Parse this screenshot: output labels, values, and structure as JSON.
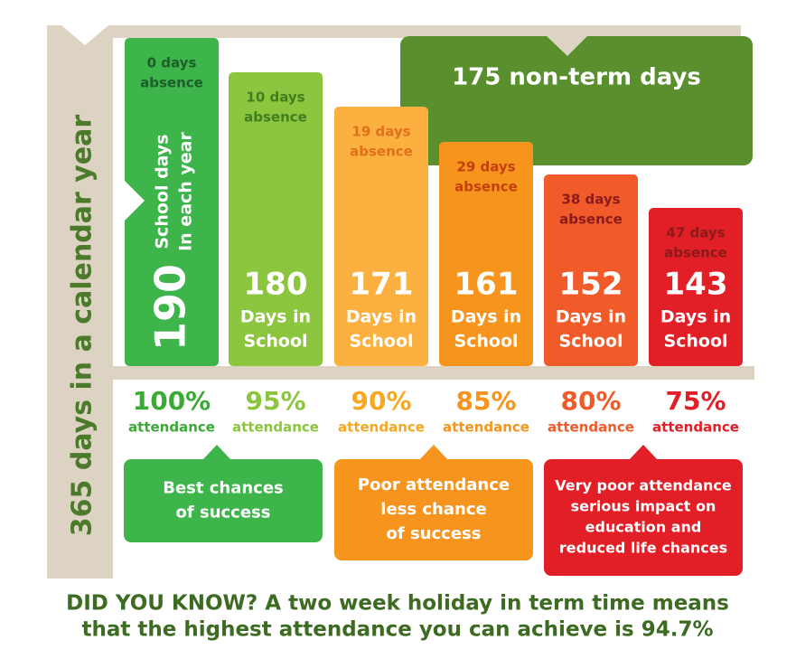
{
  "side_label": "365 days in a calendar year",
  "non_term": "175 non-term days",
  "columns": [
    {
      "absence": [
        "0 days",
        "absence"
      ],
      "days": "190",
      "days_label": [
        "School days",
        "In each year"
      ],
      "attendance": "100%",
      "attendance_label": "attendance"
    },
    {
      "absence": [
        "10 days",
        "absence"
      ],
      "days": "180",
      "days_label": [
        "Days in",
        "School"
      ],
      "attendance": "95%",
      "attendance_label": "attendance"
    },
    {
      "absence": [
        "19 days",
        "absence"
      ],
      "days": "171",
      "days_label": [
        "Days in",
        "School"
      ],
      "attendance": "90%",
      "attendance_label": "attendance"
    },
    {
      "absence": [
        "29 days",
        "absence"
      ],
      "days": "161",
      "days_label": [
        "Days in",
        "School"
      ],
      "attendance": "85%",
      "attendance_label": "attendance"
    },
    {
      "absence": [
        "38 days",
        "absence"
      ],
      "days": "152",
      "days_label": [
        "Days in",
        "School"
      ],
      "attendance": "80%",
      "attendance_label": "attendance"
    },
    {
      "absence": [
        "47 days",
        "absence"
      ],
      "days": "143",
      "days_label": [
        "Days in",
        "School"
      ],
      "attendance": "75%",
      "attendance_label": "attendance"
    }
  ],
  "boxes": [
    {
      "lines": [
        "Best chances",
        "of success"
      ]
    },
    {
      "lines": [
        "Poor attendance",
        "less chance",
        "of success"
      ]
    },
    {
      "lines": [
        "Very poor attendance",
        "serious impact on",
        "education and",
        "reduced life chances"
      ]
    }
  ],
  "footer": [
    "DID YOU KNOW? A two week holiday in term time means",
    "that the highest attendance you can achieve is 94.7%"
  ]
}
